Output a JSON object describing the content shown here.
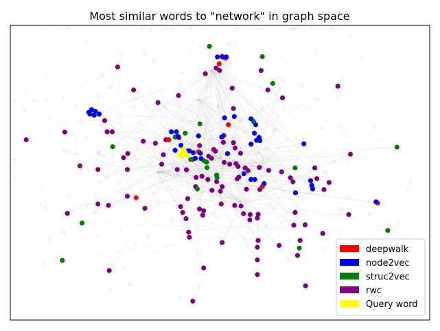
{
  "chart_data": {
    "type": "scatter",
    "title": "Most similar words to \"network\" in graph space",
    "xlabel": "",
    "ylabel": "",
    "axes_ticks": false,
    "grid": false,
    "legend_placement": "lower-right",
    "background_graph_edges": true,
    "xlim": [
      0,
      100
    ],
    "ylim": [
      0,
      100
    ],
    "series": [
      {
        "name": "deepwalk",
        "color": "#ff0000",
        "marker": "circle",
        "points": [
          [
            50.5,
            89.5
          ],
          [
            49.8,
            87.0
          ],
          [
            51.3,
            88.9
          ],
          [
            52.0,
            66.3
          ],
          [
            37.8,
            61.2
          ],
          [
            44.9,
            57.1
          ],
          [
            30.0,
            41.5
          ],
          [
            60.1,
            45.3
          ],
          [
            87.6,
            39.7
          ]
        ]
      },
      {
        "name": "node2vec",
        "color": "#0000ff",
        "marker": "circle",
        "points": [
          [
            49.4,
            89.3
          ],
          [
            50.6,
            89.3
          ],
          [
            51.5,
            89.3
          ],
          [
            18.7,
            70.5
          ],
          [
            19.4,
            71.4
          ],
          [
            20.3,
            70.8
          ],
          [
            19.0,
            69.9
          ],
          [
            20.0,
            69.5
          ],
          [
            21.2,
            69.9
          ],
          [
            51.1,
            68.6
          ],
          [
            53.4,
            69.1
          ],
          [
            57.4,
            68.3
          ],
          [
            58.5,
            66.3
          ],
          [
            39.6,
            63.9
          ],
          [
            38.4,
            63.9
          ],
          [
            40.0,
            62.3
          ],
          [
            44.9,
            62.5
          ],
          [
            50.4,
            62.1
          ],
          [
            58.2,
            63.4
          ],
          [
            59.3,
            62.0
          ],
          [
            58.7,
            61.0
          ],
          [
            59.5,
            60.9
          ],
          [
            57.4,
            59.7
          ],
          [
            40.7,
            59.3
          ],
          [
            39.3,
            57.6
          ],
          [
            42.7,
            57.4
          ],
          [
            43.6,
            56.8
          ],
          [
            45.3,
            56.6
          ],
          [
            45.5,
            54.8
          ],
          [
            44.1,
            54.9
          ],
          [
            41.4,
            56.8
          ],
          [
            42.3,
            57.4
          ],
          [
            70.0,
            59.8
          ],
          [
            51.8,
            56.5
          ],
          [
            55.7,
            49.7
          ],
          [
            57.4,
            47.7
          ],
          [
            58.3,
            47.7
          ],
          [
            60.5,
            46.3
          ],
          [
            71.6,
            47.3
          ],
          [
            71.9,
            45.7
          ],
          [
            72.1,
            44.5
          ],
          [
            68.0,
            43.2
          ],
          [
            87.2,
            40.1
          ]
        ]
      },
      {
        "name": "struc2vec",
        "color": "#008000",
        "marker": "circle",
        "points": [
          [
            47.5,
            92.9
          ],
          [
            60.1,
            89.4
          ],
          [
            62.6,
            80.3
          ],
          [
            58.0,
            67.4
          ],
          [
            45.2,
            66.6
          ],
          [
            41.7,
            63.4
          ],
          [
            39.3,
            62.1
          ],
          [
            24.4,
            58.8
          ],
          [
            92.2,
            58.7
          ],
          [
            43.0,
            54.5
          ],
          [
            46.2,
            54.1
          ],
          [
            46.8,
            53.6
          ],
          [
            67.9,
            51.6
          ],
          [
            46.9,
            51.7
          ],
          [
            49.2,
            49.2
          ],
          [
            49.3,
            48.4
          ],
          [
            44.6,
            44.5
          ],
          [
            90.0,
            30.4
          ],
          [
            17.1,
            32.9
          ],
          [
            68.9,
            24.4
          ],
          [
            12.4,
            20.2
          ]
        ]
      },
      {
        "name": "rwc",
        "color": "#800080",
        "marker": "circle",
        "points": [
          [
            25.6,
            85.9
          ],
          [
            49.1,
            85.5
          ],
          [
            49.9,
            84.7
          ],
          [
            59.8,
            84.7
          ],
          [
            46.5,
            83.6
          ],
          [
            29.4,
            78.1
          ],
          [
            40.1,
            76.2
          ],
          [
            52.9,
            78.7
          ],
          [
            53.2,
            71.8
          ],
          [
            61.4,
            78.1
          ],
          [
            64.9,
            75.4
          ],
          [
            78.1,
            79.4
          ],
          [
            35.2,
            73.8
          ],
          [
            22.5,
            67.7
          ],
          [
            13.0,
            63.8
          ],
          [
            3.8,
            61.2
          ],
          [
            23.1,
            63.9
          ],
          [
            24.3,
            63.9
          ],
          [
            37.1,
            61.2
          ],
          [
            31.7,
            60.7
          ],
          [
            34.6,
            60.0
          ],
          [
            40.2,
            61.9
          ],
          [
            45.1,
            59.2
          ],
          [
            50.9,
            62.6
          ],
          [
            50.8,
            60.3
          ],
          [
            53.2,
            60.2
          ],
          [
            54.9,
            56.6
          ],
          [
            53.6,
            58.4
          ],
          [
            48.5,
            57.9
          ],
          [
            48.9,
            57.3
          ],
          [
            28.0,
            56.5
          ],
          [
            27.0,
            55.1
          ],
          [
            36.5,
            56.1
          ],
          [
            43.5,
            54.5
          ],
          [
            47.3,
            55.6
          ],
          [
            48.0,
            54.9
          ],
          [
            81.1,
            56.3
          ],
          [
            16.6,
            52.3
          ],
          [
            20.9,
            51.1
          ],
          [
            27.9,
            51.1
          ],
          [
            36.1,
            52.9
          ],
          [
            39.8,
            51.1
          ],
          [
            42.0,
            51.0
          ],
          [
            51.0,
            53.5
          ],
          [
            52.3,
            52.9
          ],
          [
            53.8,
            53.1
          ],
          [
            54.3,
            52.1
          ],
          [
            56.7,
            50.7
          ],
          [
            56.0,
            51.6
          ],
          [
            59.4,
            51.8
          ],
          [
            61.6,
            50.8
          ],
          [
            64.7,
            50.3
          ],
          [
            72.6,
            51.6
          ],
          [
            54.5,
            48.5
          ],
          [
            54.1,
            47.9
          ],
          [
            49.2,
            47.0
          ],
          [
            50.5,
            45.3
          ],
          [
            44.3,
            48.4
          ],
          [
            45.7,
            48.8
          ],
          [
            47.1,
            47.7
          ],
          [
            44.2,
            45.3
          ],
          [
            48.1,
            44.0
          ],
          [
            50.1,
            43.7
          ],
          [
            56.3,
            44.4
          ],
          [
            59.5,
            44.3
          ],
          [
            66.8,
            48.3
          ],
          [
            73.1,
            48.0
          ],
          [
            67.4,
            46.9
          ],
          [
            74.8,
            44.3
          ],
          [
            76.0,
            46.7
          ],
          [
            42.3,
            41.2
          ],
          [
            27.9,
            42.0
          ],
          [
            20.9,
            39.4
          ],
          [
            23.4,
            38.9
          ],
          [
            32.1,
            37.9
          ],
          [
            13.6,
            36.2
          ],
          [
            40.6,
            38.5
          ],
          [
            45.1,
            37.7
          ],
          [
            50.3,
            39.4
          ],
          [
            53.5,
            38.9
          ],
          [
            55.0,
            38.7
          ],
          [
            55.6,
            36.1
          ],
          [
            57.2,
            35.8
          ],
          [
            59.1,
            35.9
          ],
          [
            46.1,
            37.1
          ],
          [
            45.9,
            35.6
          ],
          [
            41.1,
            36.5
          ],
          [
            41.9,
            34.4
          ],
          [
            57.1,
            34.0
          ],
          [
            58.9,
            34.6
          ],
          [
            67.9,
            36.5
          ],
          [
            80.7,
            35.8
          ],
          [
            70.3,
            32.3
          ],
          [
            74.5,
            29.4
          ],
          [
            42.5,
            29.8
          ],
          [
            42.7,
            28.1
          ],
          [
            50.5,
            26.3
          ],
          [
            59.1,
            27.0
          ],
          [
            64.1,
            25.3
          ],
          [
            69.1,
            27.0
          ],
          [
            67.6,
            32.2
          ],
          [
            58.9,
            24.7
          ],
          [
            68.5,
            21.9
          ],
          [
            58.9,
            20.4
          ],
          [
            46.1,
            17.7
          ],
          [
            23.6,
            16.8
          ],
          [
            58.9,
            15.4
          ],
          [
            70.4,
            11.6
          ],
          [
            43.5,
            6.4
          ]
        ]
      },
      {
        "name": "Query word",
        "color": "#ffff00",
        "marker": "triangle",
        "points": [
          [
            41.3,
            56.9
          ]
        ]
      }
    ],
    "legend": [
      {
        "label": "deepwalk",
        "color": "#ff0000"
      },
      {
        "label": "node2vec",
        "color": "#0000ff"
      },
      {
        "label": "struc2vec",
        "color": "#008000"
      },
      {
        "label": "rwc",
        "color": "#800080"
      },
      {
        "label": "Query word",
        "color": "#ffff00"
      }
    ]
  }
}
